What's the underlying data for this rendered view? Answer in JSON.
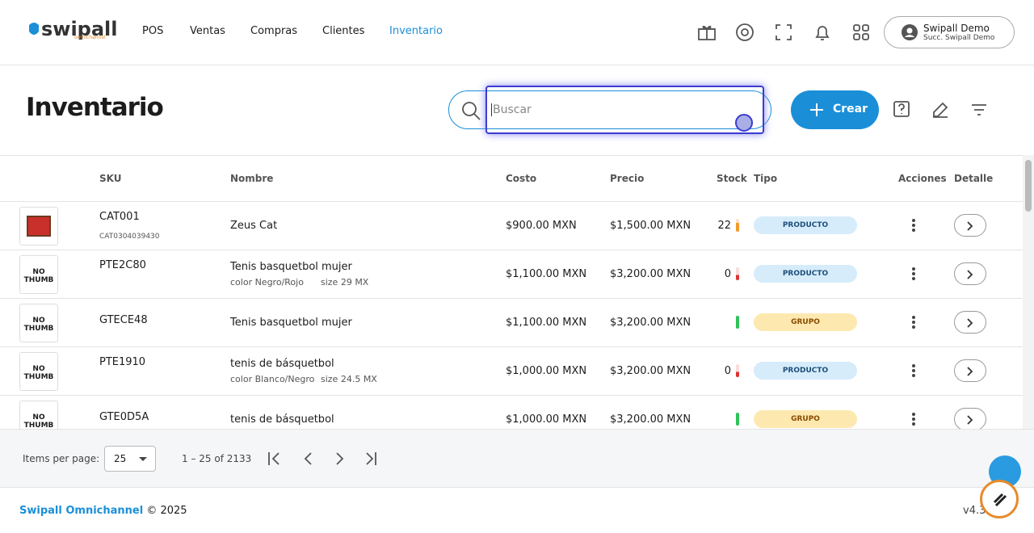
{
  "nav": {
    "logo": "swipall",
    "logo_sub": "omnichannel",
    "items": [
      "POS",
      "Ventas",
      "Compras",
      "Clientes",
      "Inventario"
    ],
    "user": {
      "name": "Swipall Demo",
      "branch": "Succ. Swipall Demo"
    }
  },
  "page": {
    "title": "Inventario",
    "search_placeholder": "Buscar",
    "create": "Crear"
  },
  "table": {
    "headers": [
      "SKU",
      "Nombre",
      "Costo",
      "Precio",
      "Stock",
      "Tipo",
      "Acciones",
      "Detalle"
    ],
    "rows": [
      {
        "sku": "CAT001",
        "barcode": "CAT0304039430",
        "name": "Zeus Cat",
        "cost": "$900.00 MXN",
        "price": "$1,500.00 MXN",
        "stock": "22",
        "type": "PRODUCTO"
      },
      {
        "thumb": "NO THUMB",
        "sku": "PTE2C80",
        "name": "Tenis basquetbol mujer",
        "variants": [
          "color Negro/Rojo",
          "size 29 MX"
        ],
        "cost": "$1,100.00 MXN",
        "price": "$3,200.00 MXN",
        "stock": "0",
        "type": "PRODUCTO"
      },
      {
        "thumb": "NO THUMB",
        "sku": "GTECE48",
        "name": "Tenis basquetbol mujer",
        "cost": "$1,100.00 MXN",
        "price": "$3,200.00 MXN",
        "type": "GRUPO"
      },
      {
        "thumb": "NO THUMB",
        "sku": "PTE1910",
        "name": "tenis de básquetbol",
        "variants": [
          "color Blanco/Negro",
          "size 24.5 MX"
        ],
        "cost": "$1,000.00 MXN",
        "price": "$3,200.00 MXN",
        "stock": "0",
        "type": "PRODUCTO"
      },
      {
        "thumb": "NO THUMB",
        "sku": "GTE0D5A",
        "name": "tenis de básquetbol",
        "cost": "$1,000.00 MXN",
        "price": "$3,200.00 MXN",
        "type": "GRUPO"
      }
    ]
  },
  "paginator": {
    "label": "Items per page:",
    "size": "25",
    "range": "1 – 25 of 2133"
  },
  "footer": {
    "brand": "Swipall Omnichannel",
    "copyright": "© 2025",
    "version": "v4.3"
  }
}
